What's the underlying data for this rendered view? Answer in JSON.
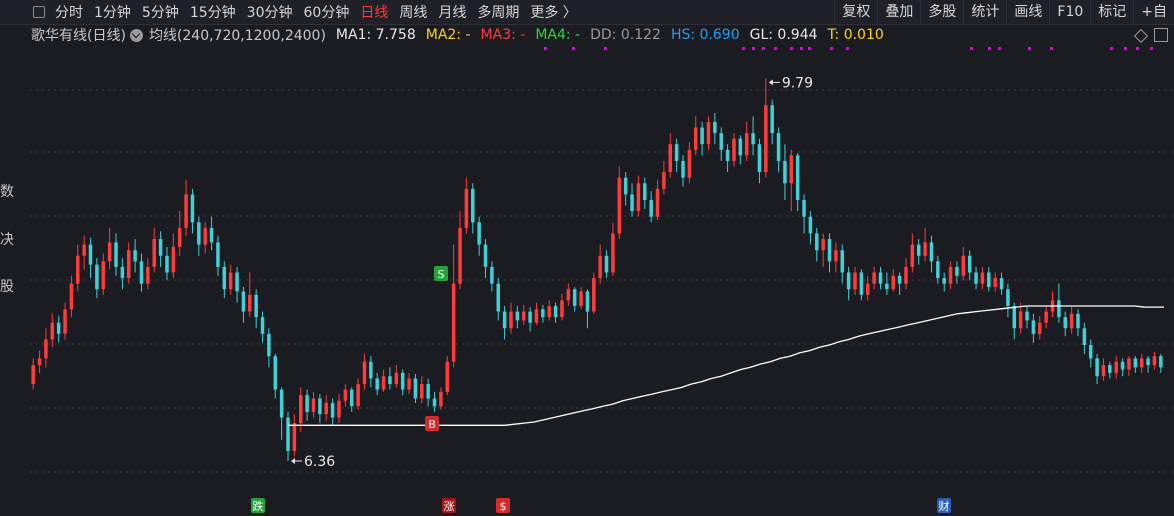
{
  "toolbar": {
    "periods": [
      "分时",
      "1分钟",
      "5分钟",
      "15分钟",
      "30分钟",
      "60分钟",
      "日线",
      "周线",
      "月线",
      "多周期",
      "更多 〉"
    ],
    "active_period": "日线",
    "tools": [
      "复权",
      "叠加",
      "多股",
      "统计",
      "画线",
      "F10",
      "标记",
      "+自"
    ]
  },
  "legend": {
    "stock": "歌华有线(日线)",
    "indicator": "均线(240,720,1200,2400)",
    "ma1": "MA1: 7.758",
    "ma2": "MA2: -",
    "ma3": "MA3: -",
    "ma4": "MA4: -",
    "dd": "DD: 0.122",
    "hs": "HS: 0.690",
    "gl": "GL: 0.944",
    "t": "T: 0.010"
  },
  "colors": {
    "up": "#ff3b3b",
    "down": "#3fd0d8",
    "ma": "#ffffff",
    "ma2": "#ffd21f",
    "ma3": "#ff3b3b",
    "ma4": "#2fd33f",
    "hs": "#1f9ff2",
    "t": "#ffd21f",
    "grid": "#3a3b44",
    "signal_dots": "#e000e0"
  },
  "side_labels": [
    "数",
    "决",
    "股"
  ],
  "chart_data": {
    "type": "candlestick",
    "title": "歌华有线(日线)",
    "ylim": [
      6.1,
      10.0
    ],
    "grid": true,
    "annotations": [
      {
        "text": "9.79",
        "type": "high"
      },
      {
        "text": "6.36",
        "type": "low"
      }
    ],
    "markers": [
      {
        "text": "S",
        "color": "#23a33a",
        "at": "1"
      },
      {
        "text": "B",
        "color": "#d62a2a",
        "at": "2"
      },
      {
        "text": "跌",
        "color": "#23a33a",
        "at": "3"
      },
      {
        "text": "涨",
        "color": "#a01818",
        "at": "4"
      },
      {
        "text": "$",
        "color": "#d62a2a",
        "at": "5"
      },
      {
        "text": "财",
        "color": "#2a5fb0",
        "at": "6"
      }
    ],
    "candles": [
      [
        7.05,
        7.22,
        7.28,
        7.0
      ],
      [
        7.22,
        7.28,
        7.35,
        7.15
      ],
      [
        7.28,
        7.45,
        7.55,
        7.2
      ],
      [
        7.45,
        7.6,
        7.68,
        7.38
      ],
      [
        7.6,
        7.5,
        7.66,
        7.42
      ],
      [
        7.5,
        7.72,
        7.78,
        7.45
      ],
      [
        7.72,
        7.95,
        8.02,
        7.65
      ],
      [
        7.95,
        8.2,
        8.3,
        7.88
      ],
      [
        8.2,
        8.3,
        8.38,
        8.08
      ],
      [
        8.3,
        8.12,
        8.36,
        8.0
      ],
      [
        8.12,
        7.9,
        8.18,
        7.82
      ],
      [
        7.9,
        8.15,
        8.22,
        7.85
      ],
      [
        8.15,
        8.32,
        8.45,
        8.08
      ],
      [
        8.32,
        8.1,
        8.4,
        8.02
      ],
      [
        8.1,
        8.0,
        8.18,
        7.9
      ],
      [
        8.0,
        8.25,
        8.32,
        7.95
      ],
      [
        8.25,
        8.15,
        8.35,
        8.05
      ],
      [
        8.15,
        7.95,
        8.22,
        7.88
      ],
      [
        7.95,
        8.1,
        8.18,
        7.9
      ],
      [
        8.1,
        8.35,
        8.45,
        8.05
      ],
      [
        8.35,
        8.2,
        8.42,
        8.1
      ],
      [
        8.2,
        8.05,
        8.28,
        7.98
      ],
      [
        8.05,
        8.28,
        8.4,
        8.0
      ],
      [
        8.28,
        8.45,
        8.6,
        8.2
      ],
      [
        8.45,
        8.75,
        8.88,
        8.38
      ],
      [
        8.75,
        8.5,
        8.8,
        8.4
      ],
      [
        8.5,
        8.3,
        8.55,
        8.2
      ],
      [
        8.3,
        8.45,
        8.5,
        8.22
      ],
      [
        8.45,
        8.32,
        8.55,
        8.25
      ],
      [
        8.32,
        8.1,
        8.38,
        8.02
      ],
      [
        8.1,
        7.9,
        8.15,
        7.82
      ],
      [
        7.9,
        8.05,
        8.12,
        7.85
      ],
      [
        8.05,
        7.88,
        8.1,
        7.78
      ],
      [
        7.88,
        7.7,
        7.92,
        7.6
      ],
      [
        7.7,
        7.85,
        8.05,
        7.65
      ],
      [
        7.85,
        7.65,
        7.9,
        7.55
      ],
      [
        7.65,
        7.5,
        7.7,
        7.42
      ],
      [
        7.5,
        7.3,
        7.55,
        7.2
      ],
      [
        7.3,
        7.0,
        7.32,
        6.92
      ],
      [
        7.0,
        6.75,
        7.02,
        6.55
      ],
      [
        6.75,
        6.45,
        6.8,
        6.36
      ],
      [
        6.45,
        6.7,
        6.78,
        6.4
      ],
      [
        6.7,
        6.95,
        7.02,
        6.62
      ],
      [
        6.95,
        6.8,
        7.0,
        6.72
      ],
      [
        6.8,
        6.92,
        6.98,
        6.75
      ],
      [
        6.92,
        6.78,
        6.96,
        6.7
      ],
      [
        6.78,
        6.88,
        6.95,
        6.72
      ],
      [
        6.88,
        6.75,
        6.92,
        6.68
      ],
      [
        6.75,
        6.9,
        6.96,
        6.7
      ],
      [
        6.9,
        7.0,
        7.05,
        6.85
      ],
      [
        7.0,
        6.85,
        7.02,
        6.8
      ],
      [
        6.85,
        7.05,
        7.1,
        6.82
      ],
      [
        7.05,
        7.25,
        7.32,
        7.0
      ],
      [
        7.25,
        7.1,
        7.3,
        7.02
      ],
      [
        7.1,
        7.0,
        7.15,
        6.95
      ],
      [
        7.0,
        7.12,
        7.18,
        6.98
      ],
      [
        7.12,
        7.05,
        7.2,
        7.0
      ],
      [
        7.05,
        7.15,
        7.22,
        7.02
      ],
      [
        7.15,
        7.0,
        7.18,
        6.95
      ],
      [
        7.0,
        7.1,
        7.15,
        6.96
      ],
      [
        7.1,
        6.92,
        7.14,
        6.88
      ],
      [
        6.92,
        7.05,
        7.12,
        6.88
      ],
      [
        7.05,
        6.92,
        7.1,
        6.85
      ],
      [
        6.92,
        6.85,
        6.98,
        6.8
      ],
      [
        6.85,
        6.98,
        7.02,
        6.82
      ],
      [
        6.98,
        7.25,
        7.3,
        6.95
      ],
      [
        7.25,
        7.95,
        8.3,
        7.2
      ],
      [
        7.95,
        8.45,
        8.6,
        7.9
      ],
      [
        8.45,
        8.8,
        8.9,
        8.4
      ],
      [
        8.8,
        8.5,
        8.85,
        8.4
      ],
      [
        8.5,
        8.3,
        8.55,
        8.2
      ],
      [
        8.3,
        8.1,
        8.35,
        8.0
      ],
      [
        8.1,
        7.95,
        8.15,
        7.88
      ],
      [
        7.95,
        7.7,
        8.0,
        7.62
      ],
      [
        7.7,
        7.55,
        7.75,
        7.45
      ],
      [
        7.55,
        7.7,
        7.78,
        7.5
      ],
      [
        7.7,
        7.62,
        7.75,
        7.55
      ],
      [
        7.62,
        7.7,
        7.76,
        7.58
      ],
      [
        7.7,
        7.6,
        7.74,
        7.52
      ],
      [
        7.6,
        7.72,
        7.78,
        7.58
      ],
      [
        7.72,
        7.65,
        7.76,
        7.6
      ],
      [
        7.65,
        7.75,
        7.8,
        7.62
      ],
      [
        7.75,
        7.65,
        7.78,
        7.6
      ],
      [
        7.65,
        7.8,
        7.86,
        7.62
      ],
      [
        7.8,
        7.9,
        7.95,
        7.75
      ],
      [
        7.9,
        7.75,
        7.92,
        7.7
      ],
      [
        7.75,
        7.88,
        7.92,
        7.72
      ],
      [
        7.88,
        7.7,
        7.9,
        7.55
      ],
      [
        7.7,
        8.0,
        8.05,
        7.68
      ],
      [
        8.0,
        8.2,
        8.3,
        7.95
      ],
      [
        8.2,
        8.05,
        8.25,
        8.0
      ],
      [
        8.05,
        8.4,
        8.5,
        8.02
      ],
      [
        8.4,
        8.9,
        9.0,
        8.35
      ],
      [
        8.9,
        8.75,
        8.95,
        8.65
      ],
      [
        8.75,
        8.6,
        8.85,
        8.55
      ],
      [
        8.6,
        8.85,
        8.92,
        8.55
      ],
      [
        8.85,
        8.7,
        8.9,
        8.62
      ],
      [
        8.7,
        8.55,
        8.78,
        8.5
      ],
      [
        8.55,
        8.8,
        8.88,
        8.52
      ],
      [
        8.8,
        8.95,
        9.05,
        8.75
      ],
      [
        8.95,
        9.2,
        9.3,
        8.9
      ],
      [
        9.2,
        9.05,
        9.25,
        8.95
      ],
      [
        9.05,
        8.9,
        9.1,
        8.82
      ],
      [
        8.9,
        9.15,
        9.22,
        8.85
      ],
      [
        9.15,
        9.35,
        9.45,
        9.1
      ],
      [
        9.35,
        9.2,
        9.4,
        9.1
      ],
      [
        9.2,
        9.4,
        9.45,
        9.15
      ],
      [
        9.4,
        9.3,
        9.48,
        9.2
      ],
      [
        9.3,
        9.15,
        9.35,
        9.05
      ],
      [
        9.15,
        9.05,
        9.2,
        8.95
      ],
      [
        9.05,
        9.25,
        9.3,
        9.0
      ],
      [
        9.25,
        9.1,
        9.28,
        9.02
      ],
      [
        9.1,
        9.3,
        9.4,
        9.05
      ],
      [
        9.3,
        9.2,
        9.45,
        9.1
      ],
      [
        9.2,
        8.95,
        9.25,
        8.85
      ],
      [
        8.95,
        9.55,
        9.79,
        8.9
      ],
      [
        9.55,
        9.3,
        9.6,
        9.2
      ],
      [
        9.3,
        9.05,
        9.35,
        8.95
      ],
      [
        9.05,
        8.85,
        9.2,
        8.7
      ],
      [
        8.85,
        9.1,
        9.15,
        8.6
      ],
      [
        9.1,
        8.7,
        9.12,
        8.6
      ],
      [
        8.7,
        8.55,
        8.75,
        8.4
      ],
      [
        8.55,
        8.4,
        8.6,
        8.3
      ],
      [
        8.4,
        8.25,
        8.45,
        8.15
      ],
      [
        8.25,
        8.35,
        8.4,
        8.1
      ],
      [
        8.35,
        8.15,
        8.4,
        8.05
      ],
      [
        8.15,
        8.25,
        8.32,
        8.05
      ],
      [
        8.25,
        8.05,
        8.3,
        7.95
      ],
      [
        8.05,
        7.9,
        8.1,
        7.8
      ],
      [
        7.9,
        8.05,
        8.1,
        7.85
      ],
      [
        8.05,
        7.85,
        8.08,
        7.8
      ],
      [
        7.85,
        7.95,
        8.02,
        7.8
      ],
      [
        7.95,
        8.05,
        8.1,
        7.9
      ],
      [
        8.05,
        7.95,
        8.1,
        7.9
      ],
      [
        7.95,
        7.9,
        8.05,
        7.85
      ],
      [
        7.9,
        8.02,
        8.08,
        7.88
      ],
      [
        8.02,
        7.95,
        8.05,
        7.85
      ],
      [
        7.95,
        8.1,
        8.18,
        7.9
      ],
      [
        8.1,
        8.3,
        8.4,
        8.05
      ],
      [
        8.3,
        8.2,
        8.35,
        8.12
      ],
      [
        8.2,
        8.32,
        8.45,
        8.15
      ],
      [
        8.32,
        8.15,
        8.38,
        8.05
      ],
      [
        8.15,
        8.0,
        8.2,
        7.95
      ],
      [
        8.0,
        7.95,
        8.05,
        7.88
      ],
      [
        7.95,
        8.1,
        8.15,
        7.9
      ],
      [
        8.1,
        8.02,
        8.15,
        7.95
      ],
      [
        8.02,
        8.2,
        8.28,
        7.98
      ],
      [
        8.2,
        8.05,
        8.25,
        7.98
      ],
      [
        8.05,
        7.95,
        8.1,
        7.9
      ],
      [
        7.95,
        8.05,
        8.1,
        7.9
      ],
      [
        8.05,
        7.92,
        8.1,
        7.88
      ],
      [
        7.92,
        8.0,
        8.05,
        7.88
      ],
      [
        8.0,
        7.9,
        8.05,
        7.85
      ],
      [
        7.9,
        7.75,
        7.95,
        7.65
      ],
      [
        7.75,
        7.55,
        7.78,
        7.45
      ],
      [
        7.55,
        7.7,
        7.78,
        7.5
      ],
      [
        7.7,
        7.62,
        7.75,
        7.55
      ],
      [
        7.62,
        7.5,
        7.68,
        7.42
      ],
      [
        7.5,
        7.6,
        7.66,
        7.45
      ],
      [
        7.6,
        7.7,
        7.75,
        7.55
      ],
      [
        7.7,
        7.8,
        7.88,
        7.65
      ],
      [
        7.8,
        7.65,
        7.95,
        7.6
      ],
      [
        7.65,
        7.55,
        7.7,
        7.48
      ],
      [
        7.55,
        7.68,
        7.74,
        7.5
      ],
      [
        7.68,
        7.55,
        7.72,
        7.48
      ],
      [
        7.55,
        7.4,
        7.6,
        7.32
      ],
      [
        7.4,
        7.28,
        7.45,
        7.2
      ],
      [
        7.28,
        7.12,
        7.32,
        7.05
      ],
      [
        7.12,
        7.22,
        7.28,
        7.08
      ],
      [
        7.22,
        7.15,
        7.25,
        7.1
      ],
      [
        7.15,
        7.25,
        7.3,
        7.1
      ],
      [
        7.25,
        7.18,
        7.28,
        7.12
      ],
      [
        7.18,
        7.28,
        7.3,
        7.12
      ],
      [
        7.28,
        7.2,
        7.3,
        7.15
      ],
      [
        7.2,
        7.28,
        7.32,
        7.15
      ],
      [
        7.28,
        7.22,
        7.3,
        7.15
      ],
      [
        7.22,
        7.3,
        7.34,
        7.18
      ],
      [
        7.3,
        7.2,
        7.32,
        7.15
      ]
    ],
    "ma1": [
      6.68,
      6.68,
      6.68,
      6.68,
      6.68,
      6.68,
      6.68,
      6.68,
      6.68,
      6.68,
      6.68,
      6.68,
      6.68,
      6.68,
      6.68,
      6.68,
      6.68,
      6.68,
      6.68,
      6.68,
      6.68,
      6.68,
      6.68,
      6.69,
      6.7,
      6.71,
      6.73,
      6.75,
      6.77,
      6.79,
      6.81,
      6.83,
      6.85,
      6.87,
      6.9,
      6.92,
      6.94,
      6.96,
      6.98,
      7.0,
      7.02,
      7.05,
      7.07,
      7.1,
      7.12,
      7.15,
      7.18,
      7.2,
      7.23,
      7.25,
      7.28,
      7.3,
      7.33,
      7.35,
      7.38,
      7.4,
      7.43,
      7.45,
      7.48,
      7.5,
      7.52,
      7.54,
      7.56,
      7.58,
      7.6,
      7.62,
      7.64,
      7.66,
      7.68,
      7.69,
      7.7,
      7.71,
      7.72,
      7.73,
      7.74,
      7.75,
      7.75,
      7.75,
      7.75,
      7.75,
      7.75,
      7.75,
      7.75,
      7.75,
      7.75,
      7.75,
      7.75,
      7.74,
      7.74,
      7.74
    ]
  }
}
